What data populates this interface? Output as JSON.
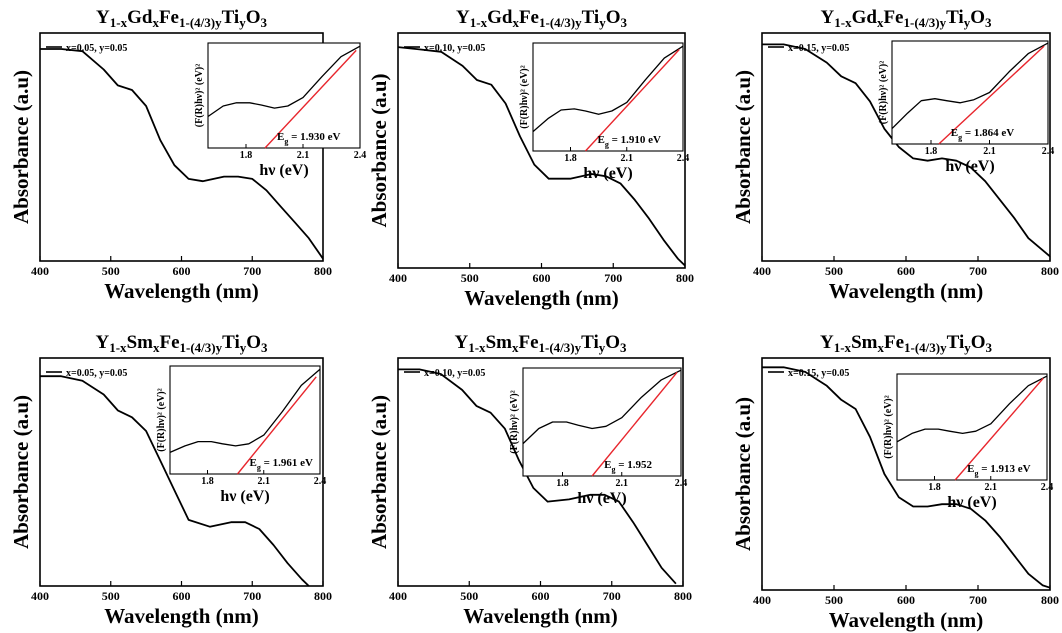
{
  "colors": {
    "spectrum": "#000000",
    "fit": "#e8262d",
    "inset_curve": "#000000"
  },
  "chart_data": [
    {
      "type": "line",
      "title": "Y1-xGdxFe1-(4/3)yTiyO3",
      "title_parts": [
        [
          "Y",
          ""
        ],
        [
          "1-x",
          "sub"
        ],
        [
          "Gd",
          ""
        ],
        [
          "x",
          "sub"
        ],
        [
          "Fe",
          ""
        ],
        [
          "1-(4/3)y",
          "sub"
        ],
        [
          "Ti",
          ""
        ],
        [
          "y",
          "sub"
        ],
        [
          "O",
          ""
        ],
        [
          "3",
          "sub"
        ]
      ],
      "xlabel": "Wavelength (nm)",
      "ylabel": "Absorbance (a.u)",
      "xlim": [
        400,
        800
      ],
      "xticks": [
        400,
        500,
        600,
        700,
        800
      ],
      "ylim": [
        0,
        1
      ],
      "legend": "top-left",
      "series": [
        {
          "name": "x=0.05, y=0.05",
          "x": [
            400,
            430,
            460,
            490,
            510,
            530,
            550,
            570,
            590,
            610,
            630,
            660,
            680,
            700,
            720,
            740,
            760,
            780,
            800
          ],
          "y": [
            0.93,
            0.93,
            0.92,
            0.84,
            0.77,
            0.75,
            0.68,
            0.53,
            0.42,
            0.36,
            0.35,
            0.37,
            0.37,
            0.36,
            0.31,
            0.24,
            0.17,
            0.1,
            0.01
          ]
        }
      ],
      "inset": {
        "xlabel": "hν (eV)",
        "ylabel": "(F(R)hν)² (eV)²",
        "xlim": [
          1.6,
          2.4
        ],
        "xticks": [
          "1.8",
          "2.1",
          "2.4"
        ],
        "curve_x": [
          1.6,
          1.68,
          1.75,
          1.82,
          1.88,
          1.95,
          2.02,
          2.1,
          2.2,
          2.3,
          2.4
        ],
        "curve_y": [
          0.3,
          0.4,
          0.43,
          0.43,
          0.41,
          0.38,
          0.4,
          0.48,
          0.68,
          0.87,
          0.97
        ],
        "fit_x": [
          1.9,
          2.38
        ],
        "fit_y": [
          0.0,
          0.93
        ],
        "annotation": "Eg = 1.930 eV",
        "ann_parts": [
          [
            "E",
            ""
          ],
          [
            "g",
            "sub"
          ],
          [
            " = 1.930 eV",
            ""
          ]
        ]
      }
    },
    {
      "type": "line",
      "title": "Y1-xGdxFe1-(4/3)yTiyO3",
      "title_parts": [
        [
          "Y",
          ""
        ],
        [
          "1-x",
          "sub"
        ],
        [
          "Gd",
          ""
        ],
        [
          "x",
          "sub"
        ],
        [
          "Fe",
          ""
        ],
        [
          "1-(4/3)y",
          "sub"
        ],
        [
          "Ti",
          ""
        ],
        [
          "y",
          "sub"
        ],
        [
          "O",
          ""
        ],
        [
          "3",
          "sub"
        ]
      ],
      "xlabel": "Wavelength (nm)",
      "ylabel": "Absorbance (a.u)",
      "xlim": [
        400,
        800
      ],
      "xticks": [
        400,
        500,
        600,
        700,
        800
      ],
      "ylim": [
        0,
        1
      ],
      "legend": "top-left",
      "series": [
        {
          "name": "x=0.10, y=0.05",
          "x": [
            400,
            430,
            460,
            490,
            510,
            530,
            550,
            570,
            590,
            610,
            640,
            670,
            690,
            710,
            730,
            750,
            770,
            790,
            800
          ],
          "y": [
            0.94,
            0.93,
            0.92,
            0.86,
            0.8,
            0.78,
            0.7,
            0.56,
            0.44,
            0.38,
            0.38,
            0.4,
            0.39,
            0.36,
            0.29,
            0.21,
            0.12,
            0.04,
            0.01
          ]
        }
      ],
      "inset": {
        "xlabel": "hν (eV)",
        "ylabel": "(F(R)hν)² (eV)²",
        "xlim": [
          1.6,
          2.4
        ],
        "xticks": [
          "1.8",
          "2.1",
          "2.4"
        ],
        "curve_x": [
          1.6,
          1.68,
          1.75,
          1.82,
          1.88,
          1.95,
          2.02,
          2.1,
          2.2,
          2.3,
          2.4
        ],
        "curve_y": [
          0.18,
          0.3,
          0.38,
          0.39,
          0.37,
          0.34,
          0.37,
          0.45,
          0.66,
          0.86,
          0.97
        ],
        "fit_x": [
          1.88,
          2.38
        ],
        "fit_y": [
          0.0,
          0.94
        ],
        "annotation": "Eg = 1.910 eV",
        "ann_parts": [
          [
            "E",
            ""
          ],
          [
            "g",
            "sub"
          ],
          [
            " = 1.910 eV",
            ""
          ]
        ]
      }
    },
    {
      "type": "line",
      "title": "Y1-xGdxFe1-(4/3)yTiyO3",
      "title_parts": [
        [
          "Y",
          ""
        ],
        [
          "1-x",
          "sub"
        ],
        [
          "Gd",
          ""
        ],
        [
          "x",
          "sub"
        ],
        [
          "Fe",
          ""
        ],
        [
          "1-(4/3)y",
          "sub"
        ],
        [
          "Ti",
          ""
        ],
        [
          "y",
          "sub"
        ],
        [
          "O",
          ""
        ],
        [
          "3",
          "sub"
        ]
      ],
      "xlabel": "Wavelength (nm)",
      "ylabel": "Absorbance (a.u)",
      "xlim": [
        400,
        800
      ],
      "xticks": [
        400,
        500,
        600,
        700,
        800
      ],
      "ylim": [
        0,
        1
      ],
      "legend": "top-left",
      "series": [
        {
          "name": "x=0.15, y=0.05",
          "x": [
            400,
            430,
            460,
            490,
            510,
            530,
            550,
            570,
            590,
            610,
            630,
            650,
            670,
            690,
            710,
            730,
            750,
            770,
            800
          ],
          "y": [
            0.95,
            0.95,
            0.93,
            0.87,
            0.81,
            0.78,
            0.7,
            0.58,
            0.5,
            0.45,
            0.44,
            0.45,
            0.44,
            0.41,
            0.35,
            0.27,
            0.19,
            0.1,
            0.02
          ]
        }
      ],
      "inset": {
        "xlabel": "hν (eV)",
        "ylabel": "(F(R)hν)² (eV)²",
        "xlim": [
          1.6,
          2.4
        ],
        "xticks": [
          "1.8",
          "2.1",
          "2.4"
        ],
        "curve_x": [
          1.6,
          1.68,
          1.75,
          1.82,
          1.88,
          1.95,
          2.02,
          2.1,
          2.2,
          2.3,
          2.4
        ],
        "curve_y": [
          0.15,
          0.3,
          0.42,
          0.44,
          0.42,
          0.4,
          0.43,
          0.5,
          0.7,
          0.88,
          0.98
        ],
        "fit_x": [
          1.84,
          2.38
        ],
        "fit_y": [
          0.0,
          0.95
        ],
        "annotation": "Eg = 1.864 eV",
        "ann_parts": [
          [
            "E",
            ""
          ],
          [
            "g",
            "sub"
          ],
          [
            " = 1.864 eV",
            ""
          ]
        ]
      }
    },
    {
      "type": "line",
      "title": "Y1-xSmxFe1-(4/3)yTiyO3",
      "title_parts": [
        [
          "Y",
          ""
        ],
        [
          "1-x",
          "sub"
        ],
        [
          "Sm",
          ""
        ],
        [
          "x",
          "sub"
        ],
        [
          "Fe",
          ""
        ],
        [
          "1-(4/3)y",
          "sub"
        ],
        [
          "Ti",
          ""
        ],
        [
          "y",
          "sub"
        ],
        [
          "O",
          ""
        ],
        [
          "3",
          "sub"
        ]
      ],
      "xlabel": "Wavelength (nm)",
      "ylabel": "Absorbance (a.u)",
      "xlim": [
        400,
        800
      ],
      "xticks": [
        400,
        500,
        600,
        700,
        800
      ],
      "ylim": [
        0,
        1
      ],
      "legend": "top-left",
      "series": [
        {
          "name": "x=0.05, y=0.05",
          "x": [
            400,
            430,
            460,
            490,
            510,
            530,
            550,
            570,
            590,
            610,
            640,
            670,
            690,
            710,
            730,
            750,
            770,
            780
          ],
          "y": [
            0.92,
            0.92,
            0.9,
            0.84,
            0.77,
            0.74,
            0.68,
            0.55,
            0.42,
            0.29,
            0.26,
            0.28,
            0.28,
            0.25,
            0.18,
            0.1,
            0.03,
            0.0
          ]
        }
      ],
      "inset": {
        "xlabel": "hν (eV)",
        "ylabel": "(F(R)hν)² (eV)²",
        "xlim": [
          1.6,
          2.4
        ],
        "xticks": [
          "1.8",
          "2.1",
          "2.4"
        ],
        "curve_x": [
          1.6,
          1.68,
          1.75,
          1.82,
          1.88,
          1.95,
          2.02,
          2.1,
          2.2,
          2.3,
          2.4
        ],
        "curve_y": [
          0.2,
          0.26,
          0.3,
          0.3,
          0.28,
          0.26,
          0.28,
          0.36,
          0.58,
          0.82,
          0.97
        ],
        "fit_x": [
          1.96,
          2.38
        ],
        "fit_y": [
          0.0,
          0.9
        ],
        "annotation": "Eg = 1.961 eV",
        "ann_parts": [
          [
            "E",
            ""
          ],
          [
            "g",
            "sub"
          ],
          [
            " = 1.961 eV",
            ""
          ]
        ]
      }
    },
    {
      "type": "line",
      "title": "Y1-xSmxFe1-(4/3)yTiyO3",
      "title_parts": [
        [
          "Y",
          ""
        ],
        [
          "1-x",
          "sub"
        ],
        [
          "Sm",
          ""
        ],
        [
          "x",
          "sub"
        ],
        [
          "Fe",
          ""
        ],
        [
          "1-(4/3)y",
          "sub"
        ],
        [
          "Ti",
          ""
        ],
        [
          "y",
          "sub"
        ],
        [
          "O",
          ""
        ],
        [
          "3",
          "sub"
        ]
      ],
      "xlabel": "Wavelength (nm)",
      "ylabel": "Absorbance (a.u)",
      "xlim": [
        400,
        800
      ],
      "xticks": [
        400,
        500,
        600,
        700,
        800
      ],
      "ylim": [
        0,
        1
      ],
      "legend": "top-left",
      "series": [
        {
          "name": "x=0.10, y=0.05",
          "x": [
            400,
            430,
            460,
            490,
            510,
            530,
            550,
            570,
            590,
            610,
            640,
            670,
            690,
            710,
            730,
            750,
            770,
            790
          ],
          "y": [
            0.95,
            0.95,
            0.93,
            0.86,
            0.79,
            0.76,
            0.69,
            0.55,
            0.43,
            0.37,
            0.38,
            0.4,
            0.4,
            0.37,
            0.28,
            0.18,
            0.08,
            0.01
          ]
        }
      ],
      "inset": {
        "xlabel": "hν (eV)",
        "ylabel": "(F(R)hν)² (eV)²",
        "xlim": [
          1.6,
          2.4
        ],
        "xticks": [
          "1.8",
          "2.1",
          "2.4"
        ],
        "curve_x": [
          1.6,
          1.68,
          1.75,
          1.82,
          1.88,
          1.95,
          2.02,
          2.1,
          2.2,
          2.3,
          2.4
        ],
        "curve_y": [
          0.3,
          0.44,
          0.5,
          0.5,
          0.47,
          0.44,
          0.46,
          0.54,
          0.73,
          0.89,
          0.98
        ],
        "fit_x": [
          1.95,
          2.38
        ],
        "fit_y": [
          0.0,
          0.96
        ],
        "annotation": "Eg = 1.952",
        "ann_parts": [
          [
            "E",
            ""
          ],
          [
            "g",
            "sub"
          ],
          [
            " = 1.952",
            ""
          ]
        ]
      }
    },
    {
      "type": "line",
      "title": "Y1-xSmxFe1-(4/3)yTiyO3",
      "title_parts": [
        [
          "Y",
          ""
        ],
        [
          "1-x",
          "sub"
        ],
        [
          "Sm",
          ""
        ],
        [
          "x",
          "sub"
        ],
        [
          "Fe",
          ""
        ],
        [
          "1-(4/3)y",
          "sub"
        ],
        [
          "Ti",
          ""
        ],
        [
          "y",
          "sub"
        ],
        [
          "O",
          ""
        ],
        [
          "3",
          "sub"
        ]
      ],
      "xlabel": "Wavelength (nm)",
      "ylabel": "Absorbance (a.u)",
      "xlim": [
        400,
        800
      ],
      "xticks": [
        400,
        500,
        600,
        700,
        800
      ],
      "ylim": [
        0,
        1
      ],
      "legend": "top-left",
      "series": [
        {
          "name": "x=0.15, y=0.05",
          "x": [
            400,
            430,
            460,
            490,
            510,
            530,
            550,
            570,
            590,
            610,
            630,
            650,
            670,
            690,
            710,
            730,
            750,
            770,
            790,
            800
          ],
          "y": [
            0.96,
            0.96,
            0.94,
            0.88,
            0.82,
            0.78,
            0.66,
            0.5,
            0.4,
            0.36,
            0.36,
            0.37,
            0.37,
            0.35,
            0.3,
            0.23,
            0.15,
            0.07,
            0.02,
            0.01
          ]
        }
      ],
      "inset": {
        "xlabel": "hν (eV)",
        "ylabel": "(F(R)hν)² (eV)²",
        "xlim": [
          1.6,
          2.4
        ],
        "xticks": [
          "1.8",
          "2.1",
          "2.4"
        ],
        "curve_x": [
          1.6,
          1.68,
          1.75,
          1.82,
          1.88,
          1.95,
          2.02,
          2.1,
          2.2,
          2.3,
          2.4
        ],
        "curve_y": [
          0.36,
          0.44,
          0.48,
          0.48,
          0.46,
          0.44,
          0.46,
          0.53,
          0.72,
          0.89,
          0.98
        ],
        "fit_x": [
          1.91,
          2.38
        ],
        "fit_y": [
          0.0,
          0.96
        ],
        "annotation": "Eg = 1.913 eV",
        "ann_parts": [
          [
            "E",
            ""
          ],
          [
            "g",
            "sub"
          ],
          [
            " = 1.913 eV",
            ""
          ]
        ]
      }
    }
  ]
}
